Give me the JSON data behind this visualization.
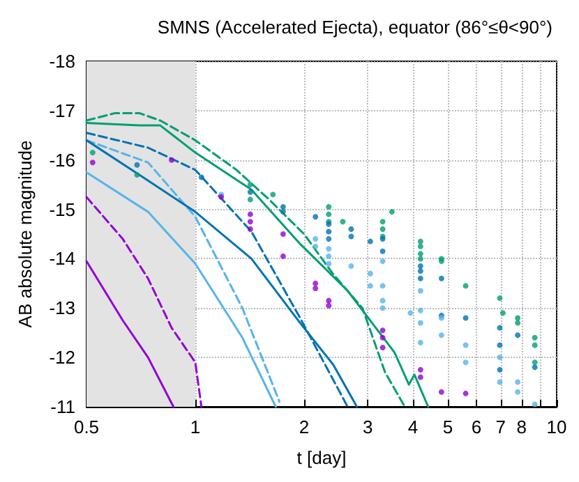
{
  "chart_data": {
    "type": "line",
    "title": "SMNS (Accelerated Ejecta), equator (86°≤θ<90°)",
    "xlabel": "t [day]",
    "ylabel": "AB absolute magnitude",
    "log": "x",
    "grid": true,
    "xlim": [
      0.5,
      10
    ],
    "xticks": [
      0.5,
      1,
      2,
      3,
      4,
      5,
      6,
      7,
      8,
      {
        "value": 9,
        "label": null
      },
      10
    ],
    "ylim": [
      -11,
      -18
    ],
    "yticks": [
      -18,
      -17,
      -16,
      -15,
      -14,
      -13,
      -12,
      -11
    ],
    "bands": [
      {
        "axis": "x",
        "from": 0.5,
        "to": 1,
        "color": "#e3e3e3"
      }
    ],
    "series": [
      {
        "color": "#9400d3",
        "line_style": "solid",
        "x": [
          0.5,
          0.63,
          0.74,
          0.87
        ],
        "values": [
          -13.95,
          -12.75,
          -12.0,
          -11.0
        ]
      },
      {
        "color": "#9400d3",
        "line_style": "dashed",
        "x": [
          0.5,
          0.63,
          0.74,
          0.86,
          1.0,
          1.04
        ],
        "values": [
          -15.25,
          -14.4,
          -13.6,
          -12.6,
          -11.9,
          -11.0
        ]
      },
      {
        "color": "#56b4e9",
        "line_style": "solid",
        "x": [
          0.5,
          0.74,
          1.0,
          1.35,
          1.67
        ],
        "values": [
          -15.75,
          -14.95,
          -13.9,
          -12.4,
          -11.0
        ]
      },
      {
        "color": "#56b4e9",
        "line_style": "dashed",
        "x": [
          0.5,
          0.74,
          1.0,
          1.35,
          1.71
        ],
        "values": [
          -16.4,
          -15.95,
          -14.85,
          -13.0,
          -11.1
        ]
      },
      {
        "color": "#0072b2",
        "line_style": "solid",
        "x": [
          0.5,
          0.7,
          1.0,
          1.43,
          1.95,
          2.41,
          2.8
        ],
        "values": [
          -16.4,
          -15.7,
          -14.95,
          -14.0,
          -12.7,
          -11.85,
          -11.0
        ]
      },
      {
        "color": "#0072b2",
        "line_style": "dashed",
        "x": [
          0.5,
          0.74,
          1.0,
          1.43,
          1.95,
          2.64
        ],
        "values": [
          -16.55,
          -16.25,
          -15.8,
          -14.55,
          -12.8,
          -11.0
        ]
      },
      {
        "color": "#009e73",
        "line_style": "solid",
        "x": [
          0.5,
          0.7,
          0.8,
          1.0,
          1.43,
          1.95,
          2.64,
          3.56,
          3.9,
          4.04,
          4.41
        ],
        "values": [
          -16.75,
          -16.7,
          -16.7,
          -16.15,
          -15.4,
          -14.3,
          -13.35,
          -12.1,
          -11.45,
          -11.65,
          -11.0
        ]
      },
      {
        "color": "#009e73",
        "line_style": "dashed",
        "x": [
          0.5,
          0.6,
          0.7,
          0.8,
          1.0,
          1.3,
          1.6,
          2.0,
          2.4,
          2.9,
          3.35,
          3.8
        ],
        "values": [
          -16.8,
          -16.95,
          -16.95,
          -16.8,
          -16.4,
          -15.8,
          -15.2,
          -14.5,
          -13.7,
          -13.0,
          -11.7,
          -11.0
        ]
      },
      {
        "type": "scatter",
        "color": "#009e73",
        "marker": "circle",
        "x": [
          0.52,
          0.69,
          1.42,
          1.42,
          1.64,
          2.34,
          2.34,
          2.34,
          2.56,
          3.3,
          3.3,
          3.3,
          3.5,
          4.2,
          4.2,
          4.2,
          4.2,
          4.8,
          4.8,
          5.6,
          6.96,
          7.1,
          7.8,
          7.8,
          8.7,
          8.7,
          8.7
        ],
        "values": [
          -16.15,
          -15.7,
          -15.5,
          -15.2,
          -15.3,
          -15.05,
          -14.9,
          -14.75,
          -14.75,
          -14.75,
          -14.6,
          -14.45,
          -14.95,
          -14.35,
          -14.25,
          -14.1,
          -14.0,
          -14.0,
          -13.95,
          -13.45,
          -13.2,
          -12.9,
          -12.8,
          -12.7,
          -12.4,
          -12.25,
          -11.9
        ]
      },
      {
        "type": "scatter",
        "color": "#0072b2",
        "marker": "circle",
        "x": [
          0.69,
          1.04,
          1.42,
          1.75,
          1.75,
          2.15,
          2.34,
          2.34,
          2.34,
          2.7,
          2.7,
          3.05,
          3.3,
          3.3,
          4.2,
          4.2,
          4.2,
          4.8,
          4.8,
          5.6,
          6.96,
          6.96,
          6.96,
          7.8,
          8.7
        ],
        "values": [
          -15.9,
          -15.65,
          -15.35,
          -15.05,
          -14.95,
          -14.85,
          -14.7,
          -14.55,
          -14.4,
          -14.6,
          -14.45,
          -14.35,
          -14.4,
          -14.15,
          -13.85,
          -13.75,
          -13.6,
          -13.6,
          -12.85,
          -12.8,
          -12.6,
          -12.25,
          -11.75,
          -12.45,
          -11.8
        ]
      },
      {
        "type": "scatter",
        "color": "#56b4e9",
        "marker": "circle",
        "x": [
          1.18,
          2.15,
          2.15,
          2.34,
          2.34,
          2.34,
          2.7,
          3.05,
          3.05,
          3.3,
          3.3,
          3.3,
          3.3,
          3.94,
          4.2,
          4.2,
          4.2,
          4.2,
          4.8,
          4.8,
          5.6,
          5.6,
          6.96,
          6.96,
          7.8,
          7.8,
          8.7
        ],
        "values": [
          -15.3,
          -14.4,
          -14.25,
          -14.2,
          -14.05,
          -13.9,
          -13.85,
          -13.7,
          -13.45,
          -13.95,
          -13.45,
          -13.15,
          -13.0,
          -12.9,
          -13.35,
          -12.95,
          -12.7,
          -12.3,
          -12.8,
          -12.45,
          -12.25,
          -11.9,
          -12.0,
          -11.5,
          -11.5,
          -11.3,
          -11.05
        ]
      },
      {
        "type": "scatter",
        "color": "#9400d3",
        "marker": "circle",
        "x": [
          0.52,
          0.86,
          1.18,
          1.42,
          1.42,
          1.42,
          1.75,
          1.75,
          2.15,
          2.15,
          2.34,
          2.34,
          3.3,
          3.3,
          3.3,
          4.2,
          4.2,
          4.8,
          5.6
        ],
        "values": [
          -15.95,
          -16.0,
          -15.25,
          -14.9,
          -14.75,
          -14.6,
          -14.5,
          -14.05,
          -13.5,
          -13.4,
          -13.15,
          -13.05,
          -12.55,
          -12.4,
          -12.2,
          -11.75,
          -11.6,
          -11.3,
          -11.27
        ]
      }
    ]
  }
}
